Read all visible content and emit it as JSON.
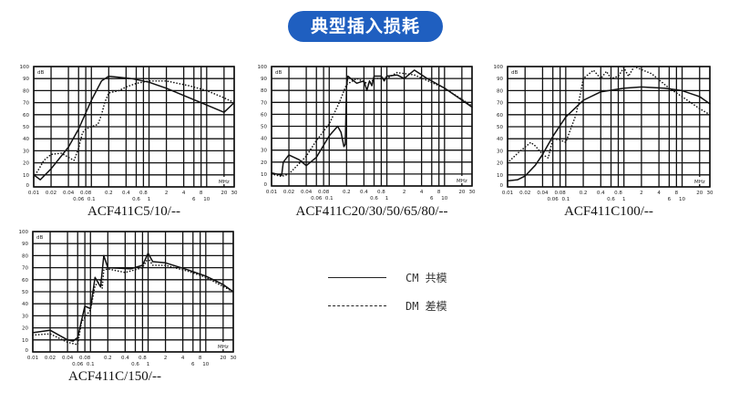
{
  "title": "典型插入损耗",
  "legend": {
    "cm": "CM 共模",
    "dm": "DM 差模",
    "cm_style": "solid",
    "dm_style": "dotted"
  },
  "chart_data": [
    {
      "type": "line",
      "caption": "ACF411C5/10/--",
      "xscale": "log",
      "xlim": [
        0.01,
        30
      ],
      "ylim": [
        0,
        100
      ],
      "xunit": "MHz",
      "yunit": "dB",
      "grid": true,
      "xticks": [
        "0.01",
        "0.02",
        "0.04",
        "0.06",
        "0.08",
        "0.1",
        "0.2",
        "0.4",
        "0.6",
        "0.8",
        "1",
        "2",
        "4",
        "6",
        "8",
        "10",
        "20",
        "30"
      ],
      "yticks": [
        "0",
        "10",
        "20",
        "30",
        "40",
        "50",
        "60",
        "70",
        "80",
        "90",
        "100"
      ],
      "series": [
        {
          "name": "CM",
          "x": [
            0.01,
            0.013,
            0.02,
            0.04,
            0.06,
            0.1,
            0.15,
            0.2,
            0.5,
            1,
            2,
            5,
            10,
            20,
            30
          ],
          "y": [
            10,
            6,
            15,
            33,
            48,
            72,
            88,
            92,
            90,
            87,
            82,
            74,
            68,
            62,
            70
          ]
        },
        {
          "name": "DM",
          "x": [
            0.01,
            0.012,
            0.015,
            0.02,
            0.03,
            0.05,
            0.06,
            0.07,
            0.08,
            0.1,
            0.13,
            0.15,
            0.17,
            0.2,
            0.3,
            0.4,
            0.6,
            1,
            2,
            5,
            10,
            20,
            30
          ],
          "y": [
            8,
            14,
            22,
            27,
            28,
            22,
            32,
            45,
            48,
            50,
            52,
            60,
            70,
            78,
            80,
            83,
            86,
            88,
            88,
            84,
            80,
            74,
            70
          ]
        }
      ]
    },
    {
      "type": "line",
      "caption": "ACF411C20/30/50/65/80/--",
      "xscale": "log",
      "xlim": [
        0.01,
        30
      ],
      "ylim": [
        0,
        100
      ],
      "xunit": "MHz",
      "yunit": "dB",
      "grid": true,
      "xticks": [
        "0.01",
        "0.02",
        "0.04",
        "0.06",
        "0.08",
        "0.1",
        "0.2",
        "0.4",
        "0.6",
        "0.8",
        "1",
        "2",
        "4",
        "6",
        "8",
        "10",
        "20",
        "30"
      ],
      "yticks": [
        "0",
        "10",
        "20",
        "30",
        "40",
        "50",
        "60",
        "70",
        "80",
        "90",
        "100"
      ],
      "series": [
        {
          "name": "CM",
          "x": [
            0.01,
            0.015,
            0.016,
            0.02,
            0.03,
            0.04,
            0.06,
            0.1,
            0.14,
            0.16,
            0.18,
            0.19,
            0.2,
            0.21,
            0.3,
            0.4,
            0.45,
            0.5,
            0.55,
            0.6,
            0.8,
            0.9,
            1,
            1.5,
            2,
            3,
            5,
            10,
            30
          ],
          "y": [
            11,
            9,
            20,
            26,
            22,
            17,
            24,
            42,
            50,
            45,
            33,
            35,
            83,
            92,
            86,
            88,
            80,
            88,
            84,
            92,
            92,
            88,
            92,
            93,
            90,
            97,
            90,
            82,
            66
          ]
        },
        {
          "name": "DM",
          "x": [
            0.01,
            0.015,
            0.02,
            0.04,
            0.06,
            0.1,
            0.15,
            0.2,
            0.3,
            0.5,
            0.6,
            1,
            1.5,
            3,
            10,
            30
          ],
          "y": [
            10,
            8,
            10,
            25,
            38,
            52,
            70,
            85,
            90,
            85,
            90,
            90,
            95,
            93,
            82,
            67
          ]
        }
      ]
    },
    {
      "type": "line",
      "caption": "ACF411C100/--",
      "xscale": "log",
      "xlim": [
        0.01,
        30
      ],
      "ylim": [
        0,
        100
      ],
      "xunit": "MHz",
      "yunit": "dB",
      "grid": true,
      "xticks": [
        "0.01",
        "0.02",
        "0.04",
        "0.06",
        "0.08",
        "0.1",
        "0.2",
        "0.4",
        "0.6",
        "0.8",
        "1",
        "2",
        "4",
        "6",
        "8",
        "10",
        "20",
        "30"
      ],
      "yticks": [
        "0",
        "10",
        "20",
        "30",
        "40",
        "50",
        "60",
        "70",
        "80",
        "90",
        "100"
      ],
      "series": [
        {
          "name": "CM",
          "x": [
            0.01,
            0.015,
            0.02,
            0.03,
            0.04,
            0.06,
            0.1,
            0.2,
            0.4,
            1,
            2,
            5,
            10,
            20,
            30
          ],
          "y": [
            5,
            6,
            9,
            18,
            27,
            42,
            58,
            72,
            79,
            82,
            83,
            82,
            80,
            75,
            69
          ]
        },
        {
          "name": "DM",
          "x": [
            0.01,
            0.015,
            0.02,
            0.025,
            0.03,
            0.04,
            0.05,
            0.06,
            0.08,
            0.1,
            0.15,
            0.18,
            0.2,
            0.3,
            0.4,
            0.5,
            0.6,
            0.8,
            1,
            1.2,
            1.5,
            3,
            6,
            10,
            20,
            30
          ],
          "y": [
            20,
            28,
            33,
            37,
            34,
            27,
            24,
            40,
            39,
            37,
            60,
            78,
            90,
            97,
            90,
            96,
            90,
            92,
            99,
            92,
            100,
            94,
            82,
            75,
            65,
            60
          ]
        }
      ]
    },
    {
      "type": "line",
      "caption": "ACF411C/150/--",
      "xscale": "log",
      "xlim": [
        0.01,
        30
      ],
      "ylim": [
        0,
        100
      ],
      "xunit": "MHz",
      "yunit": "dB",
      "grid": true,
      "xticks": [
        "0.01",
        "0.02",
        "0.04",
        "0.06",
        "0.08",
        "0.1",
        "0.2",
        "0.4",
        "0.6",
        "0.8",
        "1",
        "2",
        "4",
        "6",
        "8",
        "10",
        "20",
        "30"
      ],
      "yticks": [
        "0",
        "10",
        "20",
        "30",
        "40",
        "50",
        "60",
        "70",
        "80",
        "90",
        "100"
      ],
      "series": [
        {
          "name": "CM",
          "x": [
            0.01,
            0.02,
            0.04,
            0.05,
            0.06,
            0.08,
            0.1,
            0.12,
            0.15,
            0.17,
            0.2,
            0.5,
            0.8,
            1,
            1.2,
            2,
            5,
            10,
            20,
            30
          ],
          "y": [
            16,
            18,
            10,
            9,
            12,
            38,
            36,
            62,
            54,
            80,
            70,
            69,
            72,
            82,
            75,
            74,
            68,
            63,
            56,
            50
          ]
        },
        {
          "name": "DM",
          "x": [
            0.01,
            0.02,
            0.04,
            0.06,
            0.07,
            0.1,
            0.12,
            0.15,
            0.16,
            0.17,
            0.2,
            0.4,
            0.8,
            1,
            1.2,
            2,
            5,
            10,
            30
          ],
          "y": [
            14,
            15,
            8,
            6,
            25,
            35,
            55,
            60,
            53,
            68,
            69,
            66,
            70,
            78,
            72,
            72,
            67,
            62,
            50
          ]
        }
      ]
    }
  ]
}
